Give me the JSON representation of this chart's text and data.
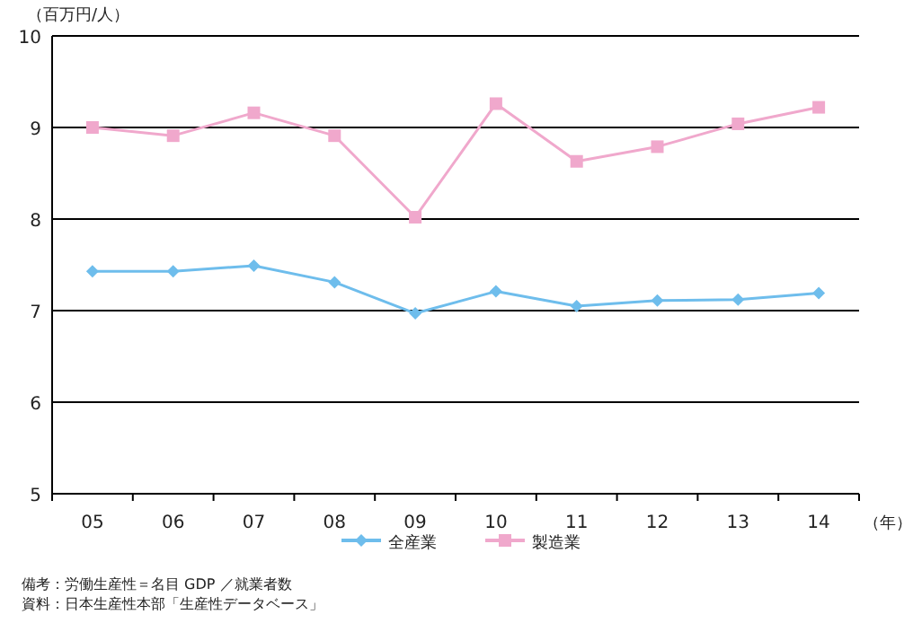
{
  "chart_data": {
    "type": "line",
    "ylabel": "（百万円/人）",
    "xlabel": "（年）",
    "categories": [
      "05",
      "06",
      "07",
      "08",
      "09",
      "10",
      "11",
      "12",
      "13",
      "14"
    ],
    "series": [
      {
        "name": "全産業",
        "color": "#6ebdec",
        "marker": "diamond",
        "values": [
          7.43,
          7.43,
          7.49,
          7.31,
          6.97,
          7.21,
          7.05,
          7.11,
          7.12,
          7.19
        ]
      },
      {
        "name": "製造業",
        "color": "#f0a8cc",
        "marker": "square",
        "values": [
          9.0,
          8.91,
          9.16,
          8.91,
          8.02,
          9.26,
          8.63,
          8.79,
          9.04,
          9.22
        ]
      }
    ],
    "ylim": [
      5,
      10
    ],
    "yticks": [
      5,
      6,
      7,
      8,
      9,
      10
    ],
    "grid": "y",
    "legend": "bottom",
    "annotations": [
      "備考：労働生産性＝名目 GDP ／就業者数",
      "資料：日本生産性本部「生産性データベース」"
    ]
  }
}
